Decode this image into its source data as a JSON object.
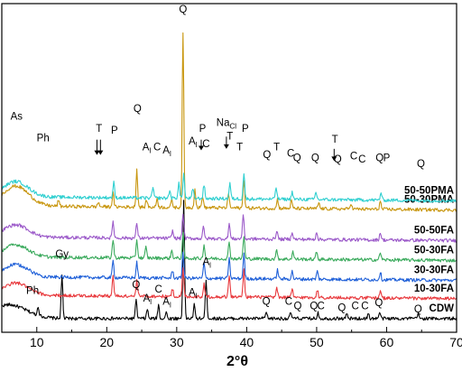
{
  "chart_data": {
    "type": "line",
    "title": "",
    "xlabel": "2°θ",
    "ylabel": "",
    "xlim": [
      5,
      70
    ],
    "x_ticks": [
      "10",
      "20",
      "30",
      "40",
      "50",
      "60",
      "70"
    ],
    "y_ticks_shown": false,
    "grid": false,
    "legend": "none",
    "series": [
      {
        "name": "50-50PMA",
        "color": "#2ECFD0",
        "baseline": 8.6,
        "baseline_slope": 0.035,
        "hump": {
          "center": 7,
          "height": 1.0,
          "width": 2.5
        },
        "peaks": [
          [
            21.0,
            1.0
          ],
          [
            26.6,
            0.7
          ],
          [
            29.0,
            0.5
          ],
          [
            30.3,
            1.0
          ],
          [
            31.0,
            1.6
          ],
          [
            32.3,
            0.6
          ],
          [
            33.9,
            0.9
          ],
          [
            37.6,
            1.0
          ],
          [
            39.6,
            1.7
          ],
          [
            44.2,
            0.8
          ],
          [
            46.5,
            0.5
          ],
          [
            49.9,
            0.5
          ],
          [
            59.2,
            0.5
          ]
        ]
      },
      {
        "name": "50-30PMA",
        "color": "#C8960E",
        "baseline": 8.0,
        "baseline_slope": 0.035,
        "hump": {
          "center": 7,
          "height": 1.3,
          "width": 2.6
        },
        "peaks": [
          [
            13.1,
            0.4
          ],
          [
            18.8,
            0.3
          ],
          [
            20.9,
            0.9
          ],
          [
            24.3,
            2.5
          ],
          [
            25.7,
            0.5
          ],
          [
            27.2,
            0.6
          ],
          [
            29.3,
            0.5
          ],
          [
            30.9,
            11.5
          ],
          [
            32.6,
            1.2
          ],
          [
            33.7,
            0.8
          ],
          [
            37.4,
            1.0
          ],
          [
            39.6,
            1.9
          ],
          [
            44.4,
            0.6
          ],
          [
            46.4,
            0.5
          ],
          [
            50.3,
            0.4
          ],
          [
            54.9,
            0.4
          ],
          [
            59.1,
            0.5
          ]
        ]
      },
      {
        "name": "50-50FA",
        "color": "#9B59C9",
        "baseline": 6.0,
        "baseline_slope": 0.03,
        "hump": {
          "center": 7,
          "height": 0.8,
          "width": 2.5
        },
        "peaks": [
          [
            20.9,
            1.1
          ],
          [
            24.3,
            1.0
          ],
          [
            29.4,
            0.5
          ],
          [
            30.9,
            1.6
          ],
          [
            33.8,
            0.8
          ],
          [
            37.5,
            1.0
          ],
          [
            39.5,
            1.6
          ],
          [
            44.3,
            0.6
          ],
          [
            46.5,
            0.5
          ],
          [
            50.0,
            0.5
          ],
          [
            59.1,
            0.5
          ]
        ]
      },
      {
        "name": "50-30FA",
        "color": "#3AAA5C",
        "baseline": 4.7,
        "baseline_slope": 0.03,
        "hump": {
          "center": 7,
          "height": 0.8,
          "width": 2.5
        },
        "peaks": [
          [
            20.9,
            1.2
          ],
          [
            24.3,
            1.2
          ],
          [
            25.6,
            0.7
          ],
          [
            29.3,
            0.5
          ],
          [
            30.9,
            1.6
          ],
          [
            33.9,
            0.9
          ],
          [
            37.5,
            1.1
          ],
          [
            39.6,
            1.5
          ],
          [
            44.3,
            0.6
          ],
          [
            46.6,
            0.5
          ],
          [
            50.0,
            0.5
          ],
          [
            59.1,
            0.5
          ]
        ]
      },
      {
        "name": "30-30FA",
        "color": "#1E5FD8",
        "baseline": 3.4,
        "baseline_slope": 0.03,
        "hump": {
          "center": 7,
          "height": 0.8,
          "width": 2.5
        },
        "peaks": [
          [
            20.9,
            1.1
          ],
          [
            24.3,
            1.0
          ],
          [
            29.4,
            0.5
          ],
          [
            30.9,
            1.7
          ],
          [
            33.9,
            1.0
          ],
          [
            37.5,
            1.3
          ],
          [
            39.6,
            1.6
          ],
          [
            44.4,
            0.6
          ],
          [
            46.5,
            0.5
          ],
          [
            50.1,
            0.5
          ],
          [
            59.1,
            0.5
          ]
        ]
      },
      {
        "name": "10-30FA",
        "color": "#E8383C",
        "baseline": 2.2,
        "baseline_slope": 0.03,
        "hump": {
          "center": 7,
          "height": 0.8,
          "width": 2.5
        },
        "peaks": [
          [
            20.9,
            1.3
          ],
          [
            24.3,
            1.0
          ],
          [
            29.4,
            0.5
          ],
          [
            30.9,
            1.8
          ],
          [
            33.9,
            0.8
          ],
          [
            37.5,
            1.4
          ],
          [
            39.6,
            1.8
          ],
          [
            44.3,
            0.6
          ],
          [
            46.5,
            0.5
          ],
          [
            50.1,
            0.5
          ],
          [
            59.1,
            0.5
          ]
        ]
      },
      {
        "name": "CDW",
        "color": "#000000",
        "baseline": 0.9,
        "baseline_slope": 0.0,
        "hump": {
          "center": 6,
          "height": 0.9,
          "width": 3.5
        },
        "peaks": [
          [
            10.2,
            0.6
          ],
          [
            13.6,
            2.8
          ],
          [
            24.2,
            1.2
          ],
          [
            25.8,
            0.6
          ],
          [
            27.4,
            0.9
          ],
          [
            28.5,
            0.4
          ],
          [
            31.0,
            7.8
          ],
          [
            32.5,
            0.9
          ],
          [
            34.2,
            2.6
          ],
          [
            42.8,
            0.4
          ],
          [
            46.3,
            0.4
          ],
          [
            50.2,
            0.4
          ],
          [
            54.3,
            0.3
          ],
          [
            57.4,
            0.3
          ],
          [
            59.0,
            0.4
          ],
          [
            64.5,
            0.3
          ]
        ]
      }
    ],
    "annotations": [
      {
        "text": "As",
        "x": 7.1,
        "y": 13.9
      },
      {
        "text": "Ph",
        "x": 10.9,
        "y": 12.5
      },
      {
        "text": "T",
        "x": 18.9,
        "y": 13.1
      },
      {
        "text": "P",
        "x": 21.1,
        "y": 13.0
      },
      {
        "text": "Q",
        "x": 24.4,
        "y": 14.4
      },
      {
        "text": "A",
        "sub": "l",
        "x": 25.7,
        "y": 11.9
      },
      {
        "text": "C",
        "x": 27.2,
        "y": 11.9
      },
      {
        "text": "A",
        "sub": "l",
        "x": 28.6,
        "y": 11.7
      },
      {
        "text": "Q",
        "x": 30.9,
        "y": 20.9
      },
      {
        "text": "A",
        "sub": "l",
        "x": 32.3,
        "y": 12.3
      },
      {
        "text": "P",
        "x": 33.7,
        "y": 13.1
      },
      {
        "text": "C",
        "x": 34.2,
        "y": 12.1
      },
      {
        "text": "Na",
        "sub": "Cl",
        "x": 37.1,
        "y": 13.5
      },
      {
        "text": "T",
        "x": 37.6,
        "y": 12.6
      },
      {
        "text": "P",
        "x": 39.8,
        "y": 13.1
      },
      {
        "text": "T",
        "x": 39.0,
        "y": 11.9
      },
      {
        "text": "Q",
        "x": 42.9,
        "y": 11.4
      },
      {
        "text": "T",
        "x": 44.3,
        "y": 11.9
      },
      {
        "text": "C",
        "x": 46.3,
        "y": 11.5
      },
      {
        "text": "Q",
        "x": 47.2,
        "y": 11.2
      },
      {
        "text": "Q",
        "x": 49.8,
        "y": 11.2
      },
      {
        "text": "T",
        "x": 52.6,
        "y": 12.4
      },
      {
        "text": "Q",
        "x": 53.0,
        "y": 11.1
      },
      {
        "text": "C",
        "x": 55.3,
        "y": 11.3
      },
      {
        "text": "C",
        "x": 56.5,
        "y": 11.1
      },
      {
        "text": "Q",
        "x": 59.0,
        "y": 11.2
      },
      {
        "text": "P",
        "x": 60.0,
        "y": 11.2
      },
      {
        "text": "Q",
        "x": 64.9,
        "y": 10.8
      },
      {
        "text": "Ph",
        "x": 9.4,
        "y": 2.5
      },
      {
        "text": "Gy",
        "x": 13.6,
        "y": 4.9
      },
      {
        "text": "Q",
        "x": 24.2,
        "y": 2.9
      },
      {
        "text": "A",
        "sub": "l",
        "x": 25.8,
        "y": 2.0
      },
      {
        "text": "C",
        "x": 27.4,
        "y": 2.6
      },
      {
        "text": "A",
        "sub": "l",
        "x": 28.6,
        "y": 1.8
      },
      {
        "text": "A",
        "sub": "l",
        "x": 32.3,
        "y": 2.4
      },
      {
        "text": "A",
        "sub": "l",
        "x": 34.3,
        "y": 4.4
      },
      {
        "text": "Q",
        "x": 42.8,
        "y": 1.8
      },
      {
        "text": "C",
        "x": 46.0,
        "y": 1.8
      },
      {
        "text": "Q",
        "x": 47.3,
        "y": 1.5
      },
      {
        "text": "Q",
        "x": 49.6,
        "y": 1.5
      },
      {
        "text": "C",
        "x": 50.6,
        "y": 1.5
      },
      {
        "text": "Q",
        "x": 53.6,
        "y": 1.4
      },
      {
        "text": "C",
        "x": 55.5,
        "y": 1.5
      },
      {
        "text": "C",
        "x": 56.9,
        "y": 1.5
      },
      {
        "text": "Q",
        "x": 58.9,
        "y": 1.7
      },
      {
        "text": "Q",
        "x": 64.5,
        "y": 1.3
      }
    ],
    "arrows": [
      {
        "x": 18.6,
        "y_from": 12.6,
        "y_to": 11.6
      },
      {
        "x": 19.1,
        "y_from": 12.6,
        "y_to": 11.6
      },
      {
        "x": 33.5,
        "y_from": 12.6,
        "y_to": 11.9
      },
      {
        "x": 37.1,
        "y_from": 12.8,
        "y_to": 12.0
      },
      {
        "x": 52.5,
        "y_from": 12.0,
        "y_to": 11.2
      }
    ]
  }
}
